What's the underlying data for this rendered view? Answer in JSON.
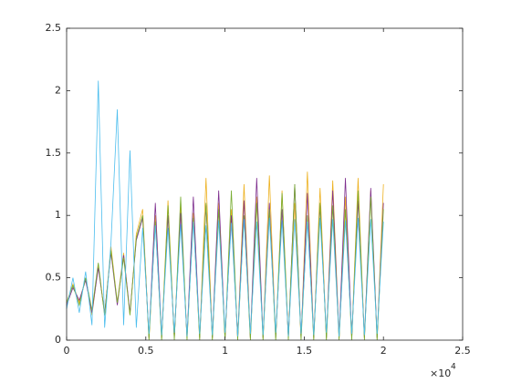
{
  "chart_data": {
    "type": "line",
    "x": [
      0,
      400,
      800,
      1200,
      1600,
      2000,
      2400,
      2800,
      3200,
      3600,
      4000,
      4400,
      4800,
      5200,
      5600,
      6000,
      6400,
      6800,
      7200,
      7600,
      8000,
      8400,
      8800,
      9200,
      9600,
      10000,
      10400,
      10800,
      11200,
      11600,
      12000,
      12400,
      12800,
      13200,
      13600,
      14000,
      14400,
      14800,
      15200,
      15600,
      16000,
      16400,
      16800,
      17200,
      17600,
      18000,
      18400,
      18800,
      19200,
      19600,
      20000
    ],
    "series": [
      {
        "color": "#EDB120",
        "values": [
          0.3,
          0.45,
          0.3,
          0.5,
          0.2,
          0.6,
          0.2,
          0.75,
          0.3,
          0.7,
          0.2,
          0.85,
          1.05,
          0.01,
          1.0,
          0.01,
          1.12,
          0.01,
          1.08,
          0.01,
          1.02,
          0.01,
          1.3,
          0.01,
          1.1,
          0.01,
          1.05,
          0.01,
          1.25,
          0.01,
          1.15,
          0.01,
          1.32,
          0.01,
          1.2,
          0.01,
          1.1,
          0.01,
          1.35,
          0.01,
          1.22,
          0.01,
          1.28,
          0.01,
          1.15,
          0.01,
          1.3,
          0.01,
          1.2,
          0.01,
          1.25
        ]
      },
      {
        "color": "#7E2F8E",
        "values": [
          0.28,
          0.42,
          0.32,
          0.48,
          0.22,
          0.58,
          0.22,
          0.7,
          0.28,
          0.68,
          0.22,
          0.8,
          0.98,
          0.02,
          1.1,
          0.02,
          1.0,
          0.02,
          1.02,
          0.02,
          1.15,
          0.02,
          1.08,
          0.02,
          1.2,
          0.02,
          1.0,
          0.02,
          1.12,
          0.02,
          1.3,
          0.02,
          1.1,
          0.02,
          1.05,
          0.02,
          1.25,
          0.02,
          1.18,
          0.02,
          1.08,
          0.02,
          1.2,
          0.02,
          1.3,
          0.02,
          1.12,
          0.02,
          1.22,
          0.02,
          1.1
        ]
      },
      {
        "color": "#77AC30",
        "values": [
          0.3,
          0.44,
          0.28,
          0.5,
          0.24,
          0.62,
          0.2,
          0.72,
          0.3,
          0.66,
          0.2,
          0.82,
          1.0,
          0.0,
          0.95,
          0.0,
          1.08,
          0.0,
          1.15,
          0.0,
          0.98,
          0.0,
          1.1,
          0.0,
          1.05,
          0.0,
          1.2,
          0.0,
          1.0,
          0.0,
          1.1,
          0.0,
          1.05,
          0.0,
          1.18,
          0.0,
          1.25,
          0.0,
          1.0,
          0.0,
          1.1,
          0.0,
          1.08,
          0.0,
          1.05,
          0.0,
          1.2,
          0.0,
          1.15,
          0.0,
          1.05
        ]
      },
      {
        "color": "#4DBEEE",
        "values": [
          0.25,
          0.5,
          0.22,
          0.55,
          0.12,
          2.08,
          0.1,
          0.78,
          1.85,
          0.12,
          1.52,
          0.1,
          0.9,
          0.05,
          0.92,
          0.04,
          0.9,
          0.06,
          0.93,
          0.03,
          0.95,
          0.05,
          0.92,
          0.04,
          0.96,
          0.06,
          0.94,
          0.03,
          0.97,
          0.05,
          0.95,
          0.04,
          0.98,
          0.06,
          0.96,
          0.03,
          0.97,
          0.05,
          0.95,
          0.04,
          0.98,
          0.06,
          0.97,
          0.03,
          0.96,
          0.05,
          0.98,
          0.04,
          0.97,
          0.05,
          0.95
        ]
      }
    ],
    "xlim": [
      0,
      25000
    ],
    "xticks": [
      0,
      {
        "value": 5000,
        "label": "0.5"
      },
      {
        "value": 10000,
        "label": "1"
      },
      {
        "value": 15000,
        "label": "1.5"
      },
      {
        "value": 20000,
        "label": "2"
      },
      {
        "value": 25000,
        "label": "2.5"
      }
    ],
    "x_multiplier": {
      "base": "×10",
      "power": "4"
    },
    "ylim": [
      0,
      2.5
    ],
    "yticks": [
      0,
      0.5,
      1,
      1.5,
      2,
      2.5
    ]
  }
}
